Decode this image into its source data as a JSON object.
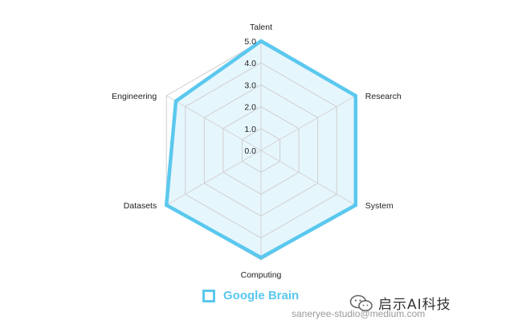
{
  "chart_data": {
    "type": "radar",
    "axes": [
      "Talent",
      "Research",
      "System",
      "Computing",
      "Datasets",
      "Engineering"
    ],
    "ticks": [
      "0.0",
      "1.0",
      "2.0",
      "3.0",
      "4.0",
      "5.0"
    ],
    "rmin": 0,
    "rmax": 5,
    "grid": true,
    "legend_position": "bottom-center",
    "series": [
      {
        "name": "Google Brain",
        "values": [
          5.0,
          5.0,
          5.0,
          4.9,
          5.0,
          4.5
        ],
        "color": "#5bc8ee",
        "fill": "#e6f6fd"
      }
    ]
  },
  "legend": {
    "label": "Google Brain"
  },
  "credit": {
    "text": "saneryee-studio@medium.com"
  },
  "watermark": {
    "text": "启示AI科技",
    "icon": "wechat-icon"
  }
}
